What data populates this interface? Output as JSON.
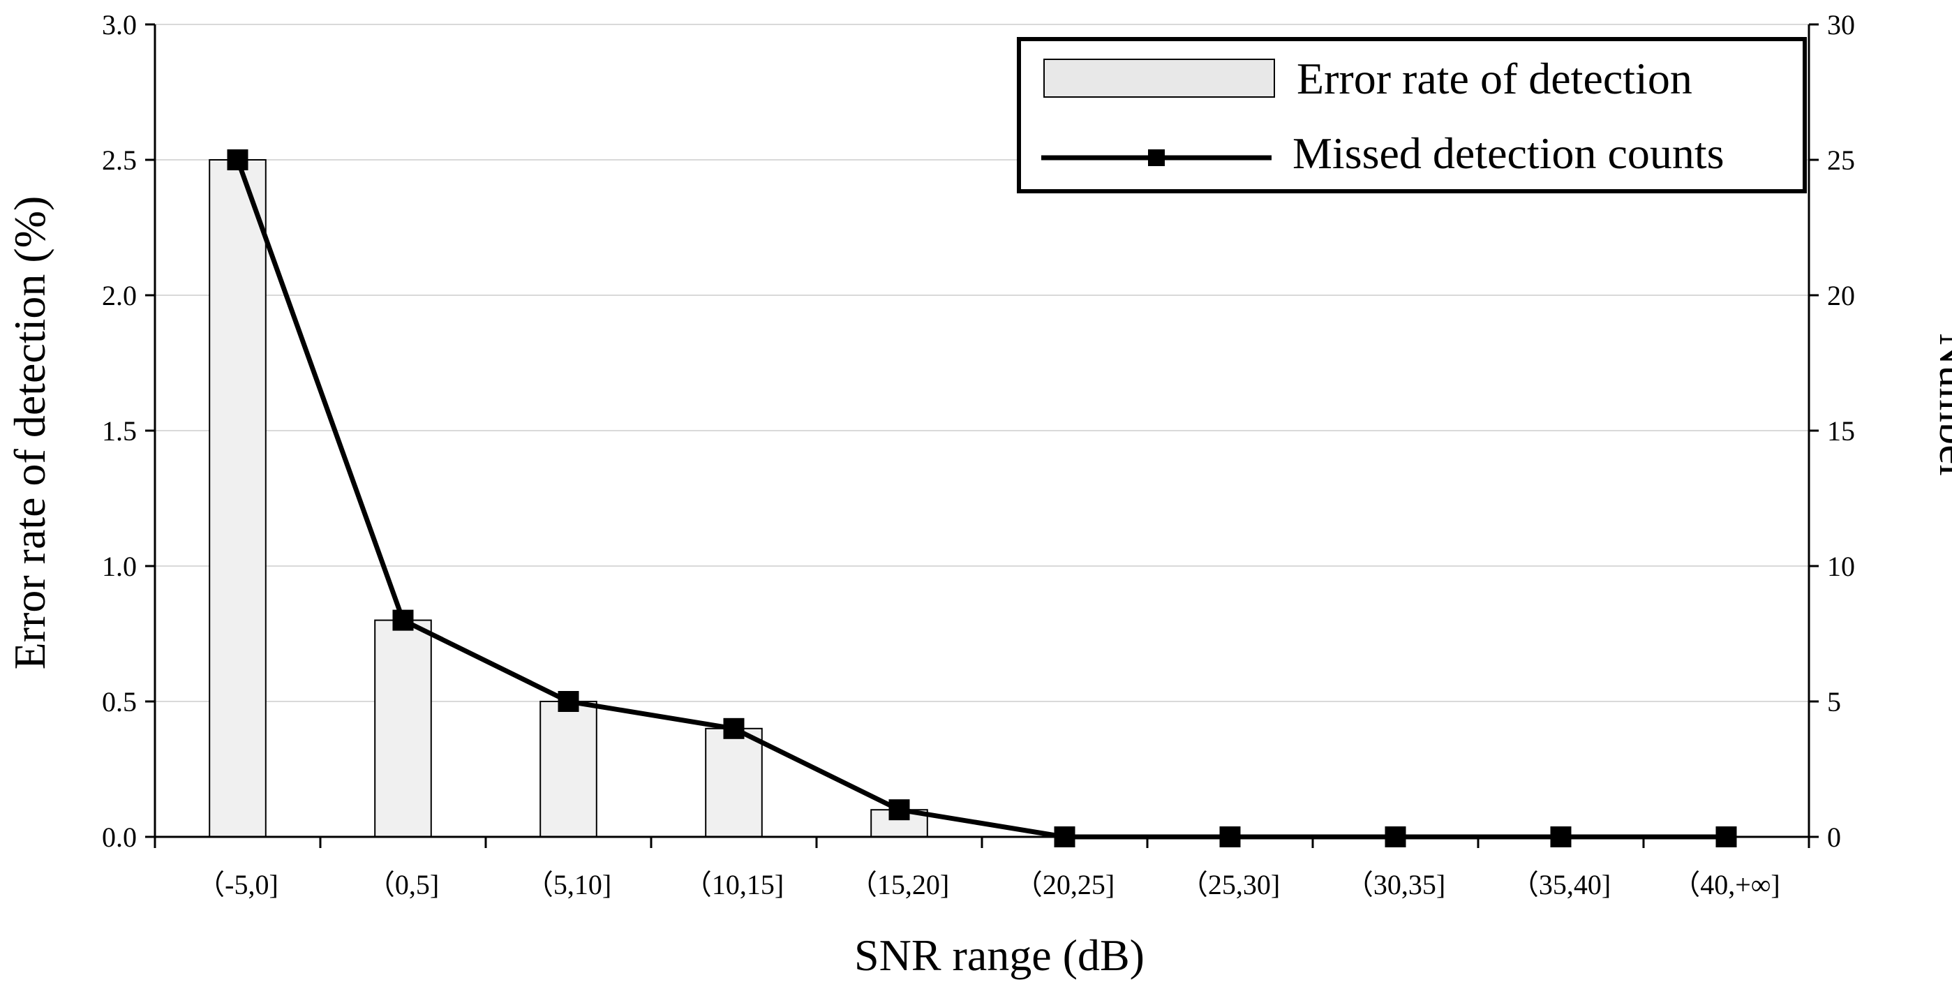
{
  "chart_data": {
    "type": "bar+line",
    "categories": [
      "（-5,0]",
      "（0,5]",
      "（5,10]",
      "（10,15]",
      "（15,20]",
      "（20,25]",
      "（25,30]",
      "（30,35]",
      "（35,40]",
      "（40,+∞]"
    ],
    "series": [
      {
        "name": "Error rate of detection",
        "type": "bar",
        "axis": "left",
        "values": [
          2.5,
          0.8,
          0.5,
          0.4,
          0.1,
          0,
          0,
          0,
          0,
          0
        ]
      },
      {
        "name": "Missed detection counts",
        "type": "line",
        "marker": "square",
        "axis": "right",
        "values": [
          25,
          8,
          5,
          4,
          1,
          0,
          0,
          0,
          0,
          0
        ]
      }
    ],
    "xlabel": "SNR range (dB)",
    "ylabel": "Error rate of detection (%)",
    "y2label": "Number",
    "ylim": [
      0,
      3.0
    ],
    "y2lim": [
      0,
      30
    ],
    "yticks": [
      "0.0",
      "0.5",
      "1.0",
      "1.5",
      "2.0",
      "2.5",
      "3.0"
    ],
    "y2ticks": [
      "0",
      "5",
      "10",
      "15",
      "20",
      "25",
      "30"
    ],
    "grid": true,
    "legend_position": "top-right",
    "colors": {
      "bar_fill": "#f0f0f0",
      "bar_stroke": "#000000",
      "line": "#000000",
      "grid": "#d9d9d9"
    }
  }
}
